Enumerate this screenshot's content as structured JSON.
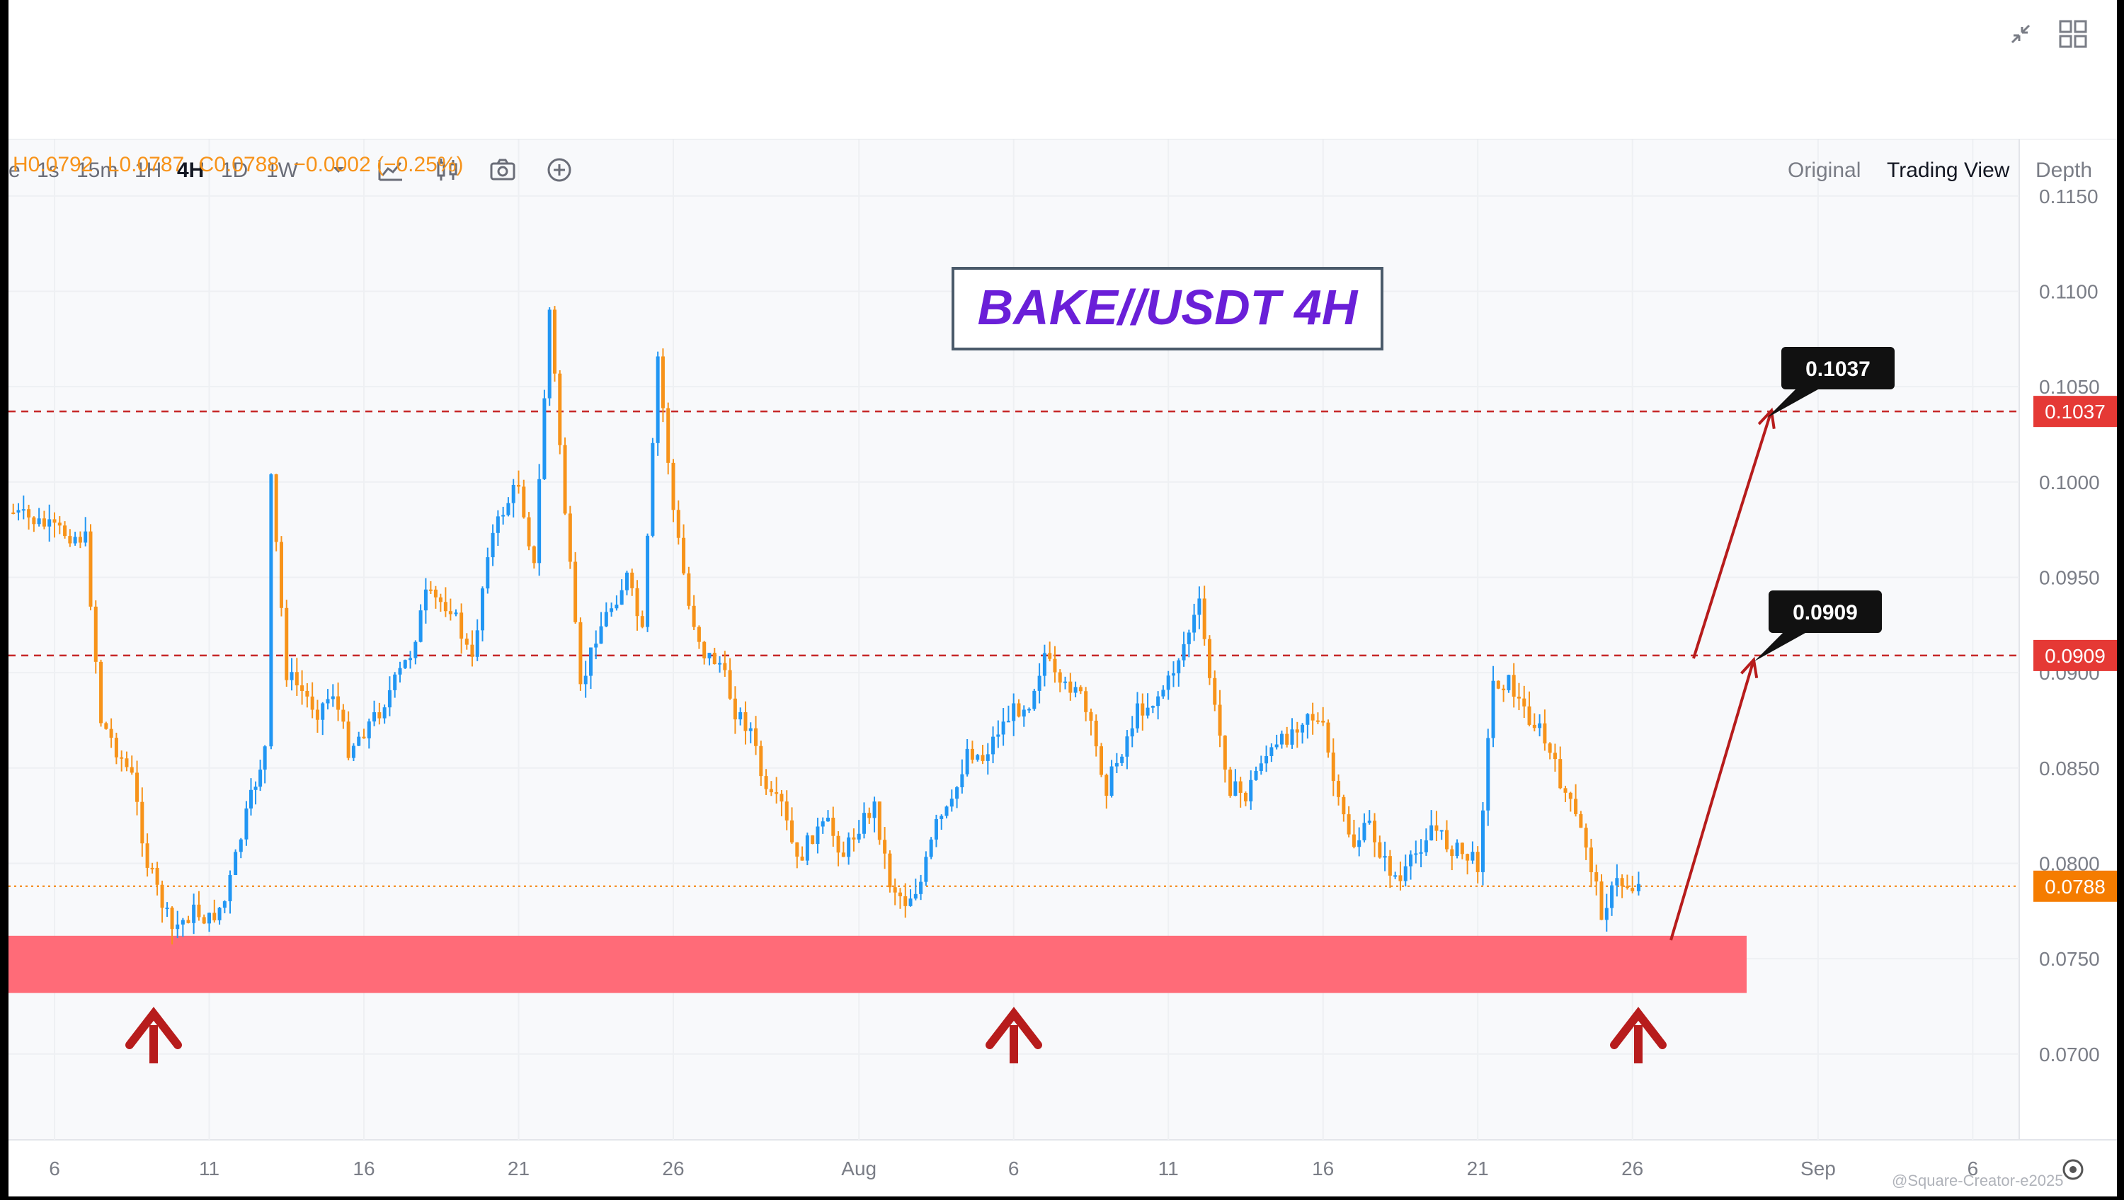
{
  "toolbar": {
    "timeframes": [
      "e",
      "1s",
      "15m",
      "1H",
      "4H",
      "1D",
      "1W"
    ],
    "active_timeframe": "4H",
    "icons": [
      "chevron-down-icon",
      "indicators-icon",
      "compare-icon",
      "camera-icon",
      "add-icon"
    ],
    "views": [
      "Original",
      "Trading View",
      "Depth"
    ],
    "active_view": "Trading View"
  },
  "window_icons": [
    "collapse-icon",
    "layout-grid-icon"
  ],
  "ohlc": {
    "high": "H0.0792",
    "low": "L0.0787",
    "close": "C0.0788",
    "change": "−0.0002 (−0.25%)"
  },
  "annotation_title": "BAKE//USDT 4H",
  "colors": {
    "up": "#2196f3",
    "down": "#f7931a",
    "support_zone": "#ff6b78",
    "level_line": "#c62828",
    "arrow": "#b71c1c",
    "price_badge": "#f57c00",
    "level_badge": "#e53935"
  },
  "levels": [
    {
      "value": 0.1037,
      "label": "0.1037",
      "axis_label": "0.1037"
    },
    {
      "value": 0.0909,
      "label": "0.0909",
      "axis_label": "0.0909"
    }
  ],
  "current_price": {
    "value": 0.0788,
    "label": "0.0788"
  },
  "support_zone": {
    "low": 0.0732,
    "high": 0.0762
  },
  "watermark": "@Square-Creator-e2025",
  "chart_data": {
    "type": "line",
    "title": "BAKE//USDT 4H",
    "xlabel": "",
    "ylabel": "",
    "x_ticks": [
      "6",
      "11",
      "16",
      "21",
      "26",
      "Aug",
      "6",
      "11",
      "16",
      "21",
      "26",
      "Sep",
      "6"
    ],
    "y_ticks": [
      "0.1150",
      "0.1100",
      "0.1050",
      "0.1000",
      "0.0950",
      "0.0900",
      "0.0850",
      "0.0800",
      "0.0750",
      "0.0700"
    ],
    "ylim": [
      0.0655,
      0.118
    ],
    "x_range_days": [
      0,
      70
    ],
    "x_tick_days": [
      0,
      5,
      10,
      15,
      20,
      26,
      31,
      36,
      41,
      46,
      51,
      57,
      62
    ],
    "grid": true,
    "series": [
      {
        "x": [
          -1.5,
          0,
          1,
          1.5,
          2.5,
          3,
          3.8,
          4.5,
          5,
          5.5,
          6.2,
          6.8,
          7,
          7.5,
          8,
          8.5,
          9,
          9.5,
          10,
          10.5,
          11,
          11.5,
          12,
          12.8,
          13.5,
          14,
          14.5,
          15,
          15.5,
          16,
          16.5,
          17,
          17.5,
          18,
          18.5,
          19,
          19.5,
          20,
          20.5,
          21,
          21.5,
          22,
          22.5,
          23,
          23.5,
          24,
          24.5,
          25,
          25.5,
          26,
          26.5,
          27,
          27.5,
          28,
          28.5,
          29,
          29.5,
          30,
          30.5,
          31,
          31.5,
          32,
          32.5,
          33,
          33.5,
          34,
          34.5,
          35,
          35.5,
          36,
          36.5,
          37,
          37.5,
          38,
          38.5,
          39,
          39.5,
          40,
          40.5,
          41,
          41.5,
          42,
          42.5,
          43,
          43.5,
          44,
          44.5,
          45,
          45.5,
          46,
          46.5,
          47,
          47.5,
          48,
          48.5,
          49,
          49.5,
          50,
          50.5,
          51,
          51.2
        ],
        "y": [
          0.0985,
          0.0975,
          0.097,
          0.0875,
          0.0845,
          0.08,
          0.0765,
          0.0775,
          0.077,
          0.078,
          0.0825,
          0.086,
          0.1,
          0.09,
          0.089,
          0.088,
          0.089,
          0.086,
          0.087,
          0.088,
          0.0895,
          0.091,
          0.094,
          0.0935,
          0.0905,
          0.0965,
          0.0985,
          0.1,
          0.0955,
          0.109,
          0.0985,
          0.089,
          0.092,
          0.0935,
          0.095,
          0.092,
          0.1065,
          0.0985,
          0.0935,
          0.091,
          0.0905,
          0.088,
          0.087,
          0.0835,
          0.083,
          0.08,
          0.0815,
          0.082,
          0.0805,
          0.082,
          0.083,
          0.079,
          0.078,
          0.079,
          0.082,
          0.083,
          0.086,
          0.0855,
          0.087,
          0.088,
          0.0885,
          0.091,
          0.089,
          0.0895,
          0.087,
          0.084,
          0.086,
          0.088,
          0.0885,
          0.0895,
          0.0915,
          0.0935,
          0.088,
          0.084,
          0.0835,
          0.0855,
          0.086,
          0.087,
          0.088,
          0.087,
          0.083,
          0.081,
          0.082,
          0.08,
          0.079,
          0.0805,
          0.082,
          0.081,
          0.0805,
          0.08,
          0.0895,
          0.0895,
          0.088,
          0.087,
          0.085,
          0.083,
          0.081,
          0.0775,
          0.079,
          0.0788,
          0.0788
        ]
      }
    ]
  }
}
